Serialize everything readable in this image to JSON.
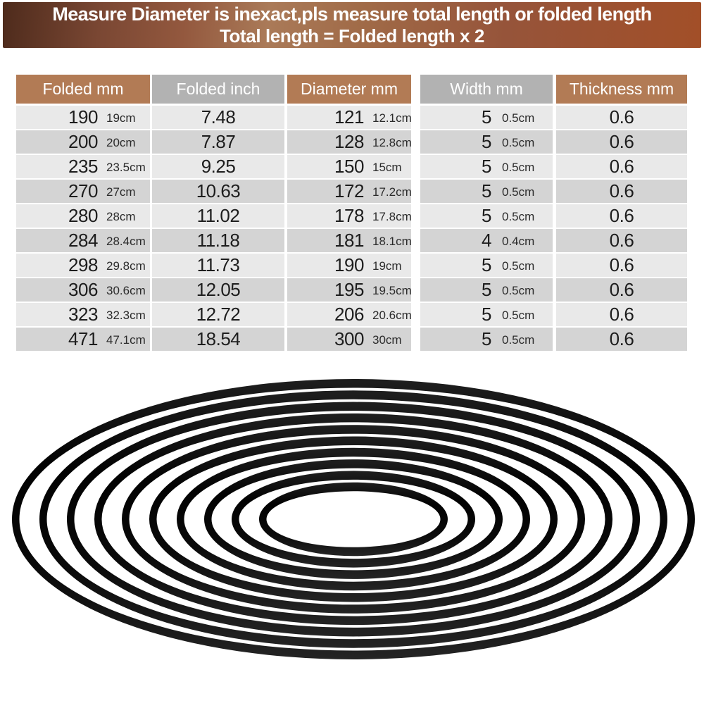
{
  "banner": {
    "line1": "Measure Diameter is inexact,pls measure total length or folded length",
    "line2": "Total length = Folded length x 2"
  },
  "table": {
    "headers": [
      {
        "label": "Folded mm",
        "theme": "brown"
      },
      {
        "label": "Folded inch",
        "theme": "gray"
      },
      {
        "label": "Diameter mm",
        "theme": "brown"
      },
      {
        "label": "Width mm",
        "theme": "gray"
      },
      {
        "label": "Thickness mm",
        "theme": "brown"
      }
    ],
    "rows": [
      {
        "folded_mm": "190",
        "folded_cm": "19cm",
        "folded_inch": "7.48",
        "diameter_mm": "121",
        "diameter_cm": "12.1cm",
        "width_mm": "5",
        "width_cm": "0.5cm",
        "thickness_mm": "0.6"
      },
      {
        "folded_mm": "200",
        "folded_cm": "20cm",
        "folded_inch": "7.87",
        "diameter_mm": "128",
        "diameter_cm": "12.8cm",
        "width_mm": "5",
        "width_cm": "0.5cm",
        "thickness_mm": "0.6"
      },
      {
        "folded_mm": "235",
        "folded_cm": "23.5cm",
        "folded_inch": "9.25",
        "diameter_mm": "150",
        "diameter_cm": "15cm",
        "width_mm": "5",
        "width_cm": "0.5cm",
        "thickness_mm": "0.6"
      },
      {
        "folded_mm": "270",
        "folded_cm": "27cm",
        "folded_inch": "10.63",
        "diameter_mm": "172",
        "diameter_cm": "17.2cm",
        "width_mm": "5",
        "width_cm": "0.5cm",
        "thickness_mm": "0.6"
      },
      {
        "folded_mm": "280",
        "folded_cm": "28cm",
        "folded_inch": "11.02",
        "diameter_mm": "178",
        "diameter_cm": "17.8cm",
        "width_mm": "5",
        "width_cm": "0.5cm",
        "thickness_mm": "0.6"
      },
      {
        "folded_mm": "284",
        "folded_cm": "28.4cm",
        "folded_inch": "11.18",
        "diameter_mm": "181",
        "diameter_cm": "18.1cm",
        "width_mm": "4",
        "width_cm": "0.4cm",
        "thickness_mm": "0.6"
      },
      {
        "folded_mm": "298",
        "folded_cm": "29.8cm",
        "folded_inch": "11.73",
        "diameter_mm": "190",
        "diameter_cm": "19cm",
        "width_mm": "5",
        "width_cm": "0.5cm",
        "thickness_mm": "0.6"
      },
      {
        "folded_mm": "306",
        "folded_cm": "30.6cm",
        "folded_inch": "12.05",
        "diameter_mm": "195",
        "diameter_cm": "19.5cm",
        "width_mm": "5",
        "width_cm": "0.5cm",
        "thickness_mm": "0.6"
      },
      {
        "folded_mm": "323",
        "folded_cm": "32.3cm",
        "folded_inch": "12.72",
        "diameter_mm": "206",
        "diameter_cm": "20.6cm",
        "width_mm": "5",
        "width_cm": "0.5cm",
        "thickness_mm": "0.6"
      },
      {
        "folded_mm": "471",
        "folded_cm": "47.1cm",
        "folded_inch": "18.54",
        "diameter_mm": "300",
        "diameter_cm": "30cm",
        "width_mm": "5",
        "width_cm": "0.5cm",
        "thickness_mm": "0.6"
      }
    ]
  },
  "belts": {
    "count": 10
  },
  "colors": {
    "banner_left": "#4e2b1c",
    "banner_mid": "#aa7a58",
    "banner_right": "#a24f28",
    "header_brown": "#b27b55",
    "header_gray": "#b2b2b2",
    "row_light": "#e9e9e9",
    "row_dark": "#d4d4d4",
    "belt_black": "#0a0a0a"
  }
}
